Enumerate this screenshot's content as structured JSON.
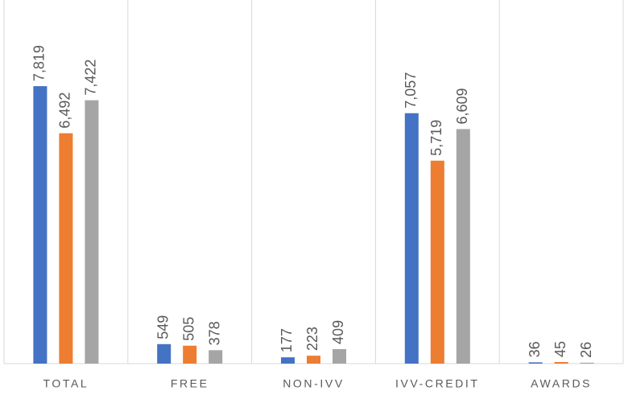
{
  "chart_data": {
    "type": "bar",
    "categories": [
      "TOTAL",
      "FREE",
      "NON-IVV",
      "IVV-CREDIT",
      "AWARDS"
    ],
    "series": [
      {
        "color": "#4472c4",
        "values": [
          7819,
          549,
          177,
          7057,
          36
        ],
        "value_labels": [
          "7,819",
          "549",
          "177",
          "7,057",
          "36"
        ]
      },
      {
        "color": "#ed7d31",
        "values": [
          6492,
          505,
          223,
          5719,
          45
        ],
        "value_labels": [
          "6,492",
          "505",
          "223",
          "5,719",
          "45"
        ]
      },
      {
        "color": "#a5a5a5",
        "values": [
          7422,
          378,
          409,
          6609,
          26
        ],
        "value_labels": [
          "7,422",
          "378",
          "409",
          "6,609",
          "26"
        ]
      }
    ],
    "ylim": [
      0,
      9000
    ]
  }
}
